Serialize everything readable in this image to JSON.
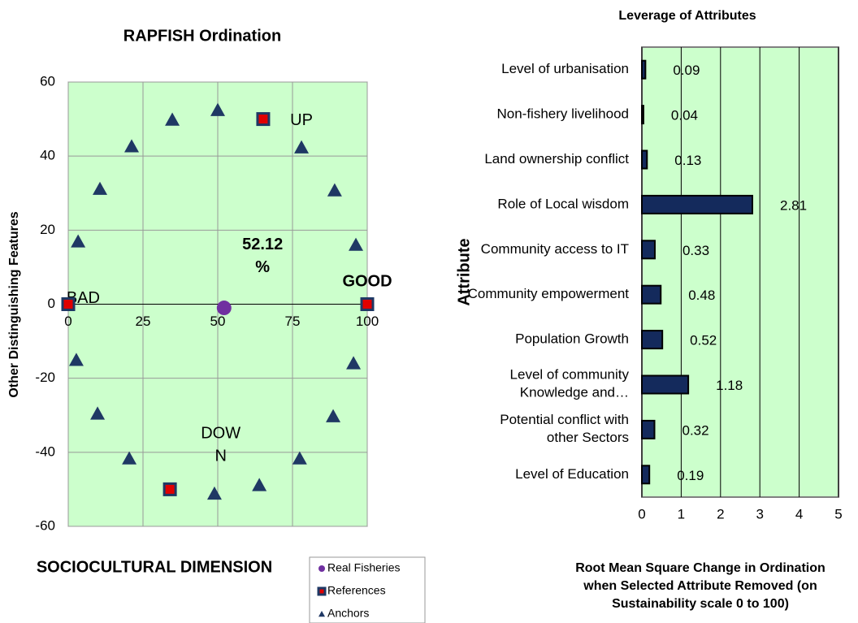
{
  "chart_data": [
    {
      "type": "scatter",
      "title": "RAPFISH Ordination",
      "xlabel": "SOCIOCULTURAL DIMENSION",
      "ylabel": "Other Distinguishing Features",
      "xlim": [
        0,
        100
      ],
      "ylim": [
        -60,
        60
      ],
      "xticks": [
        0,
        25,
        50,
        75,
        100
      ],
      "yticks": [
        -60,
        -40,
        -20,
        0,
        20,
        40,
        60
      ],
      "grid": true,
      "background": "#ccffcc",
      "series": [
        {
          "name": "Real Fisheries",
          "color": "#7030a0",
          "marker": "circle",
          "x": [
            52.12
          ],
          "values": [
            -1
          ]
        },
        {
          "name": "References",
          "color": "#1f3864",
          "marker": "square",
          "x": [
            0,
            100,
            65.2,
            34.0
          ],
          "values": [
            0,
            0,
            50,
            -50
          ]
        },
        {
          "name": "Anchors",
          "color": "#1f3864",
          "marker": "triangle",
          "x": [
            34.8,
            50.0,
            21.2,
            78.0,
            10.6,
            89.1,
            3.3,
            96.2,
            2.7,
            95.4,
            9.8,
            88.6,
            20.4,
            77.4,
            48.9,
            63.9
          ],
          "values": [
            49.8,
            52.4,
            42.6,
            42.3,
            31.1,
            30.7,
            16.9,
            16.0,
            -15.1,
            -16.0,
            -29.6,
            -30.3,
            -41.7,
            -41.7,
            -51.2,
            -48.9
          ]
        }
      ],
      "annotations": [
        {
          "lines": [
            "UP"
          ],
          "x": 78,
          "y": 49.5,
          "bold": false
        },
        {
          "lines": [
            "BAD"
          ],
          "x": 5,
          "y": 1.5,
          "bold": false
        },
        {
          "lines": [
            "GOOD"
          ],
          "x": 100,
          "y": 6,
          "bold": true
        },
        {
          "lines": [
            "DOW",
            "N"
          ],
          "x": 51,
          "y": -35,
          "bold": false
        },
        {
          "lines": [
            "52.12",
            "%"
          ],
          "x": 65,
          "y": 16,
          "bold": true
        }
      ]
    },
    {
      "type": "hbar",
      "title": "Leverage of Attributes",
      "ylabel": "Attribute",
      "xlabel": [
        "Root Mean Square Change in Ordination",
        "when Selected Attribute Removed (on",
        "Sustainability scale 0 to 100)"
      ],
      "xlim": [
        0,
        5
      ],
      "xticks": [
        0,
        1,
        2,
        3,
        4,
        5
      ],
      "grid": true,
      "color": "#142a5c",
      "background": "#ccffcc",
      "categories": [
        "Level of urbanisation",
        "Non-fishery livelihood",
        "Land ownership conflict",
        "Role of Local wisdom",
        "Community access to IT",
        "Community empowerment",
        "Population Growth",
        "Level of community\nKnowledge and…",
        "Potential conflict with\nother Sectors",
        "Level of Education"
      ],
      "values": [
        0.09,
        0.04,
        0.13,
        2.81,
        0.33,
        0.48,
        0.52,
        1.18,
        0.32,
        0.19
      ]
    }
  ]
}
